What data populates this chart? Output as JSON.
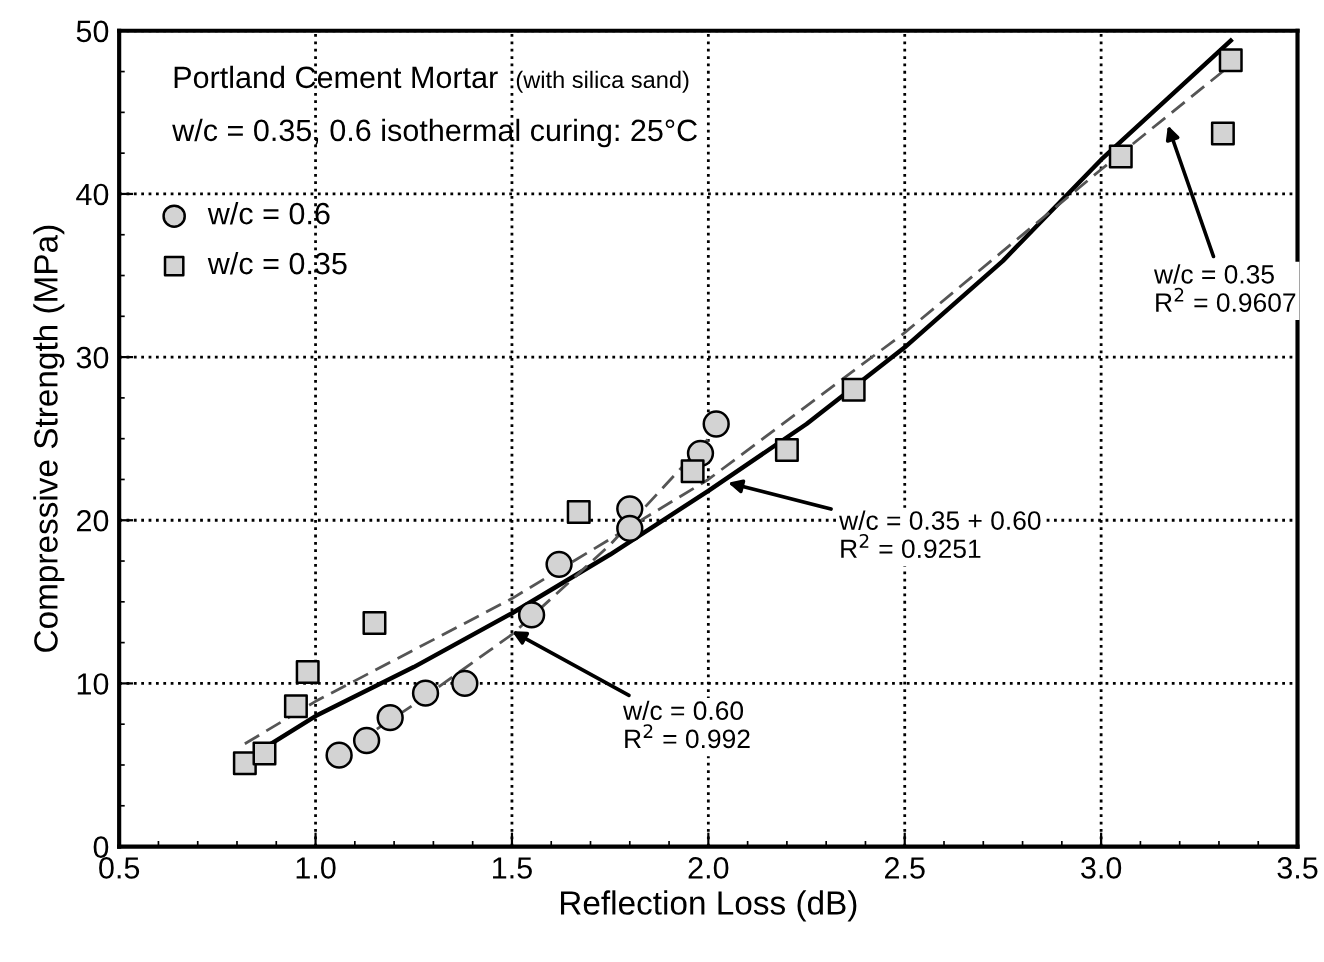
{
  "chart_data": {
    "type": "scatter",
    "title": "Portland Cement Mortar",
    "subtitle": "(with silica sand)",
    "xlabel": "Reflection Loss (dB)",
    "ylabel": "Compressive Strength (MPa)",
    "xlim": [
      0.5,
      3.5
    ],
    "ylim": [
      0,
      50
    ],
    "xticks": [
      0.5,
      {
        "value": 1.0,
        "label": "1.0"
      },
      1.5,
      {
        "value": 2.0,
        "label": "2.0"
      },
      2.5,
      {
        "value": 3.0,
        "label": "3.0"
      },
      3.5
    ],
    "yticks": [
      0,
      10,
      20,
      30,
      40,
      50
    ],
    "grid": true,
    "legend": "top left",
    "series": [
      {
        "name": "w/c = 0.6",
        "marker": "circle",
        "color": "#d3d3d3",
        "x": [
          1.06,
          1.13,
          1.19,
          1.28,
          1.38,
          1.55,
          1.62,
          1.8,
          1.8,
          1.98,
          2.02
        ],
        "values": [
          5.6,
          6.5,
          7.9,
          9.4,
          10.0,
          14.2,
          17.3,
          20.7,
          19.5,
          24.1,
          25.9
        ]
      },
      {
        "name": "w/c = 0.35",
        "marker": "square",
        "color": "#d3d3d3",
        "x": [
          0.82,
          0.87,
          0.95,
          0.98,
          1.15,
          1.67,
          1.96,
          2.2,
          2.37,
          3.05,
          3.31,
          3.33
        ],
        "values": [
          5.1,
          5.7,
          8.6,
          10.7,
          13.7,
          20.5,
          23.0,
          24.3,
          28.0,
          42.3,
          43.7,
          48.2
        ]
      },
      {
        "type": "line",
        "line_style": "solid",
        "color": "#000000",
        "x": [
          0.82,
          1.0,
          1.25,
          1.5,
          1.75,
          2.0,
          2.25,
          2.5,
          2.75,
          3.0,
          3.33
        ],
        "values": [
          5.3,
          8.0,
          11.0,
          14.3,
          17.9,
          21.8,
          25.9,
          30.6,
          35.9,
          42.1,
          49.4
        ]
      },
      {
        "type": "line",
        "line_style": "dashed",
        "color": "#555555",
        "x": [
          0.82,
          1.0,
          1.5,
          2.0,
          2.5,
          3.0,
          3.33
        ],
        "values": [
          6.3,
          8.9,
          15.2,
          22.5,
          31.5,
          41.5,
          47.9
        ]
      },
      {
        "type": "line",
        "line_style": "dashed",
        "color": "#555555",
        "x": [
          1.05,
          1.25,
          1.5,
          1.75,
          2.0
        ],
        "values": [
          5.5,
          8.7,
          13.0,
          18.5,
          25.0
        ]
      }
    ],
    "annotations": [
      "w/c = 0.35, 0.6 isothermal curing: 25°C",
      {
        "text": "w/c = 0.60\nR$^{2}$ = 0.992",
        "x": 1.5,
        "y": 13.2
      },
      {
        "text": "w/c = 0.35 + 0.60\nR$^{2}$ = 0.9251",
        "x": 2.05,
        "y": 22.3
      },
      {
        "text": "w/c = 0.35\nR$^{2}$ = 0.9607",
        "x": 3.17,
        "y": 44.2
      }
    ]
  }
}
